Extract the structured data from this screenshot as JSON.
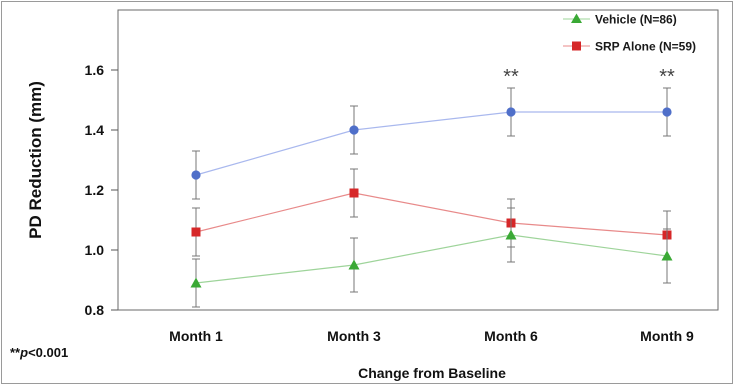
{
  "chart_data": {
    "type": "line",
    "xlabel": "Change from Baseline",
    "ylabel": "PD Reduction (mm)",
    "ylim": [
      0.8,
      1.8
    ],
    "yticks": [
      "0.8",
      "1.0",
      "1.2",
      "1.4",
      "1.6"
    ],
    "categories": [
      "Month 1",
      "Month 3",
      "Month 6",
      "Month 9"
    ],
    "grid": false,
    "legend_position": "top-right",
    "footnote": "**p<0.001",
    "significance": [
      {
        "category": "Month 6",
        "label": "**"
      },
      {
        "category": "Month 9",
        "label": "**"
      }
    ],
    "series": [
      {
        "key": "top",
        "marker": "circle",
        "color": "#4f6fc9",
        "line_color": "#a9b8ee",
        "values": [
          1.25,
          1.4,
          1.46,
          1.46
        ],
        "error_low": [
          1.17,
          1.32,
          1.38,
          1.38
        ],
        "error_high": [
          1.33,
          1.48,
          1.54,
          1.54
        ]
      },
      {
        "name": "SRP Alone (N=59)",
        "marker": "square",
        "color": "#d62728",
        "line_color": "#e88a8a",
        "values": [
          1.06,
          1.19,
          1.09,
          1.05
        ],
        "error_low": [
          0.98,
          1.11,
          1.01,
          0.97
        ],
        "error_high": [
          1.14,
          1.27,
          1.17,
          1.13
        ]
      },
      {
        "name": "Vehicle (N=86)",
        "marker": "triangle",
        "color": "#3aa935",
        "line_color": "#9ed49a",
        "values": [
          0.89,
          0.95,
          1.05,
          0.98
        ],
        "error_low": [
          0.81,
          0.86,
          0.96,
          0.89
        ],
        "error_high": [
          0.97,
          1.04,
          1.14,
          1.07
        ]
      }
    ]
  }
}
